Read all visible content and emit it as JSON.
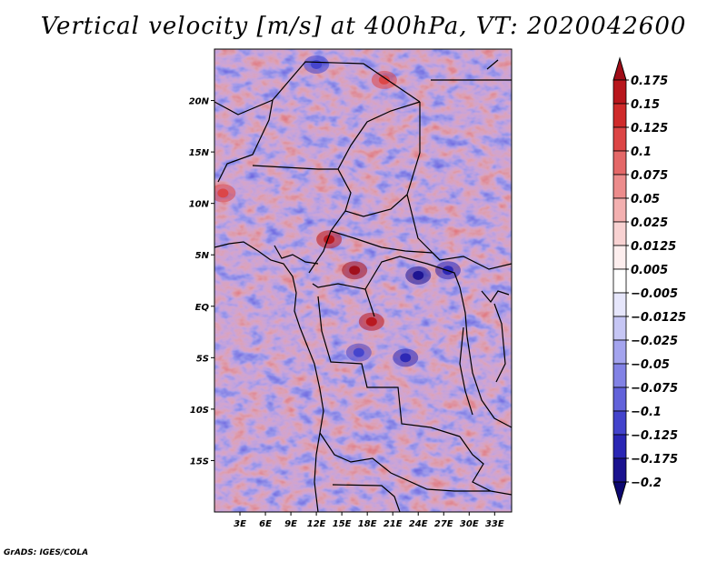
{
  "title": "Vertical velocity [m/s] at 400hPa, VT: 2020042600",
  "credit": "GrADS: IGES/COLA",
  "map": {
    "lon_range": [
      0,
      35
    ],
    "lat_range": [
      -20,
      25
    ],
    "lon_ticks": [
      {
        "value": 3,
        "label": "3E"
      },
      {
        "value": 6,
        "label": "6E"
      },
      {
        "value": 9,
        "label": "9E"
      },
      {
        "value": 12,
        "label": "12E"
      },
      {
        "value": 15,
        "label": "15E"
      },
      {
        "value": 18,
        "label": "18E"
      },
      {
        "value": 21,
        "label": "21E"
      },
      {
        "value": 24,
        "label": "24E"
      },
      {
        "value": 27,
        "label": "27E"
      },
      {
        "value": 30,
        "label": "30E"
      },
      {
        "value": 33,
        "label": "33E"
      }
    ],
    "lat_ticks": [
      {
        "value": 20,
        "label": "20N"
      },
      {
        "value": 15,
        "label": "15N"
      },
      {
        "value": 10,
        "label": "10N"
      },
      {
        "value": 5,
        "label": "5N"
      },
      {
        "value": 0,
        "label": "EQ"
      },
      {
        "value": -5,
        "label": "5S"
      },
      {
        "value": -10,
        "label": "10S"
      },
      {
        "value": -15,
        "label": "15S"
      }
    ]
  },
  "colorbar": {
    "levels": [
      "0.175",
      "0.15",
      "0.125",
      "0.1",
      "0.075",
      "0.05",
      "0.025",
      "0.0125",
      "0.005",
      "-0.005",
      "-0.0125",
      "-0.025",
      "-0.05",
      "-0.075",
      "-0.1",
      "-0.125",
      "-0.175",
      "-0.2"
    ],
    "colors": [
      "#a00d18",
      "#b8161c",
      "#cf2a2a",
      "#dc4545",
      "#e46868",
      "#ec8c8c",
      "#f3b0b0",
      "#f8d2d2",
      "#fdeeee",
      "#ffffff",
      "#e6e6fb",
      "#c6c6f4",
      "#a4a4ee",
      "#8282e5",
      "#6262da",
      "#4343cc",
      "#2a26b4",
      "#1a128f",
      "#0c0770"
    ]
  },
  "hotspots": [
    {
      "lon": 16.5,
      "lat": 3.5,
      "value": 0.175
    },
    {
      "lon": 18.5,
      "lat": -1.5,
      "value": 0.15
    },
    {
      "lon": 13.5,
      "lat": 6.5,
      "value": 0.15
    },
    {
      "lon": 24,
      "lat": 3,
      "value": -0.2
    },
    {
      "lon": 27.5,
      "lat": 3.5,
      "value": -0.175
    },
    {
      "lon": 22.5,
      "lat": -5,
      "value": -0.175
    },
    {
      "lon": 17,
      "lat": -4.5,
      "value": -0.125
    },
    {
      "lon": 1,
      "lat": 11,
      "value": 0.1
    },
    {
      "lon": 20,
      "lat": 22,
      "value": 0.1
    },
    {
      "lon": 12,
      "lat": 23.5,
      "value": -0.125
    }
  ]
}
